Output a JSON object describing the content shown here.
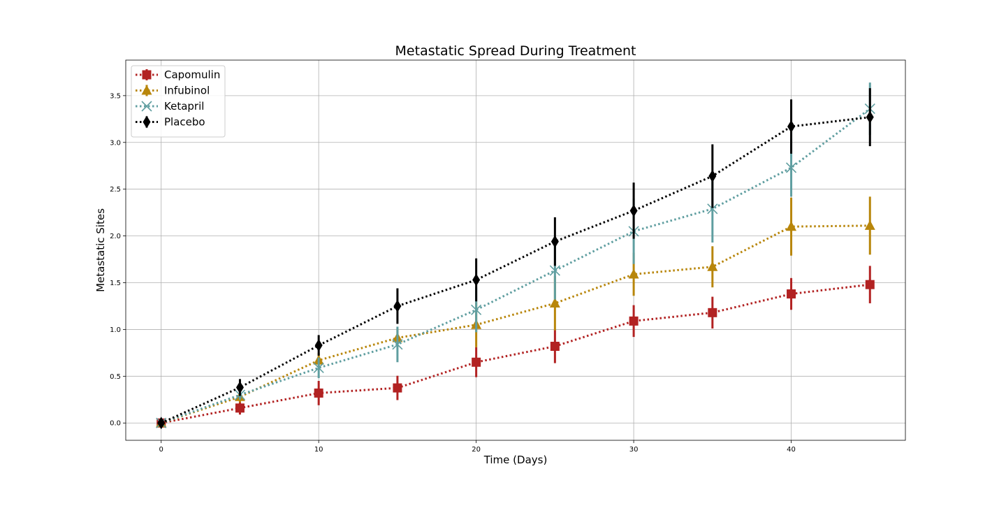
{
  "chart_data": {
    "type": "line",
    "title": "Metastatic Spread During Treatment",
    "xlabel": "Time (Days)",
    "ylabel": "Metastatic Sites",
    "xlim": [
      -2.25,
      47.25
    ],
    "ylim": [
      -0.185,
      3.88
    ],
    "xticks": [
      0,
      10,
      20,
      30,
      40
    ],
    "yticks": [
      0.0,
      0.5,
      1.0,
      1.5,
      2.0,
      2.5,
      3.0,
      3.5
    ],
    "ytick_labels": [
      "0.0",
      "0.5",
      "1.0",
      "1.5",
      "2.0",
      "2.5",
      "3.0",
      "3.5"
    ],
    "grid": true,
    "legend_position": "top-left",
    "x": [
      0,
      5,
      10,
      15,
      20,
      25,
      30,
      35,
      40,
      45
    ],
    "series": [
      {
        "name": "Capomulin",
        "color": "#b22222",
        "marker": "square",
        "values": [
          0.0,
          0.16,
          0.32,
          0.375,
          0.65,
          0.82,
          1.09,
          1.18,
          1.38,
          1.48
        ],
        "errors": [
          0.0,
          0.07,
          0.13,
          0.13,
          0.16,
          0.18,
          0.17,
          0.17,
          0.17,
          0.2
        ]
      },
      {
        "name": "Infubinol",
        "color": "#b8860b",
        "marker": "triangle",
        "values": [
          0.0,
          0.28,
          0.67,
          0.91,
          1.05,
          1.28,
          1.59,
          1.67,
          2.1,
          2.11
        ],
        "errors": [
          0.0,
          0.06,
          0.08,
          0.1,
          0.24,
          0.29,
          0.23,
          0.22,
          0.31,
          0.31
        ]
      },
      {
        "name": "Ketapril",
        "color": "#5f9ea0",
        "marker": "x",
        "values": [
          0.0,
          0.3,
          0.59,
          0.84,
          1.21,
          1.63,
          2.05,
          2.29,
          2.73,
          3.36
        ],
        "errors": [
          0.0,
          0.05,
          0.11,
          0.19,
          0.24,
          0.31,
          0.35,
          0.36,
          0.31,
          0.28
        ]
      },
      {
        "name": "Placebo",
        "color": "#000000",
        "marker": "diamond",
        "values": [
          0.0,
          0.38,
          0.83,
          1.25,
          1.53,
          1.94,
          2.27,
          2.64,
          3.17,
          3.27
        ],
        "errors": [
          0.0,
          0.09,
          0.11,
          0.19,
          0.23,
          0.26,
          0.3,
          0.34,
          0.29,
          0.31
        ]
      }
    ]
  }
}
